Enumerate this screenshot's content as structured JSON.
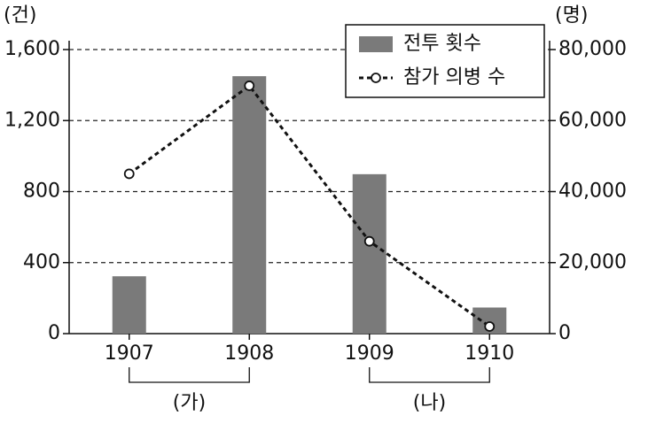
{
  "chart_data": {
    "type": "bar_line",
    "y_label": "(건)",
    "y2_label": "(명)",
    "categories": [
      "1907",
      "1908",
      "1909",
      "1910"
    ],
    "series": [
      {
        "name": "전투 횟수",
        "type": "bar",
        "color": "#7a7a7a",
        "values": [
          323,
          1450,
          898,
          147
        ]
      },
      {
        "name": "참가 의병 수",
        "type": "line",
        "axis": "y2",
        "color": "#111111",
        "values": [
          45000,
          69800,
          26000,
          2000
        ]
      }
    ],
    "ylim": [
      0,
      1600
    ],
    "yticks": [
      0,
      400,
      800,
      {
        "value": 1200,
        "label": "1,200"
      },
      {
        "value": 1600,
        "label": "1,600"
      }
    ],
    "y2lim": [
      0,
      80000
    ],
    "y2ticks": [
      0,
      {
        "value": 20000,
        "label": "20,000"
      },
      {
        "value": 40000,
        "label": "40,000"
      },
      {
        "value": 60000,
        "label": "60,000"
      },
      {
        "value": 80000,
        "label": "80,000"
      }
    ],
    "grid": true,
    "legend": "upper right",
    "annotations": [
      "(가)",
      "(나)"
    ]
  }
}
